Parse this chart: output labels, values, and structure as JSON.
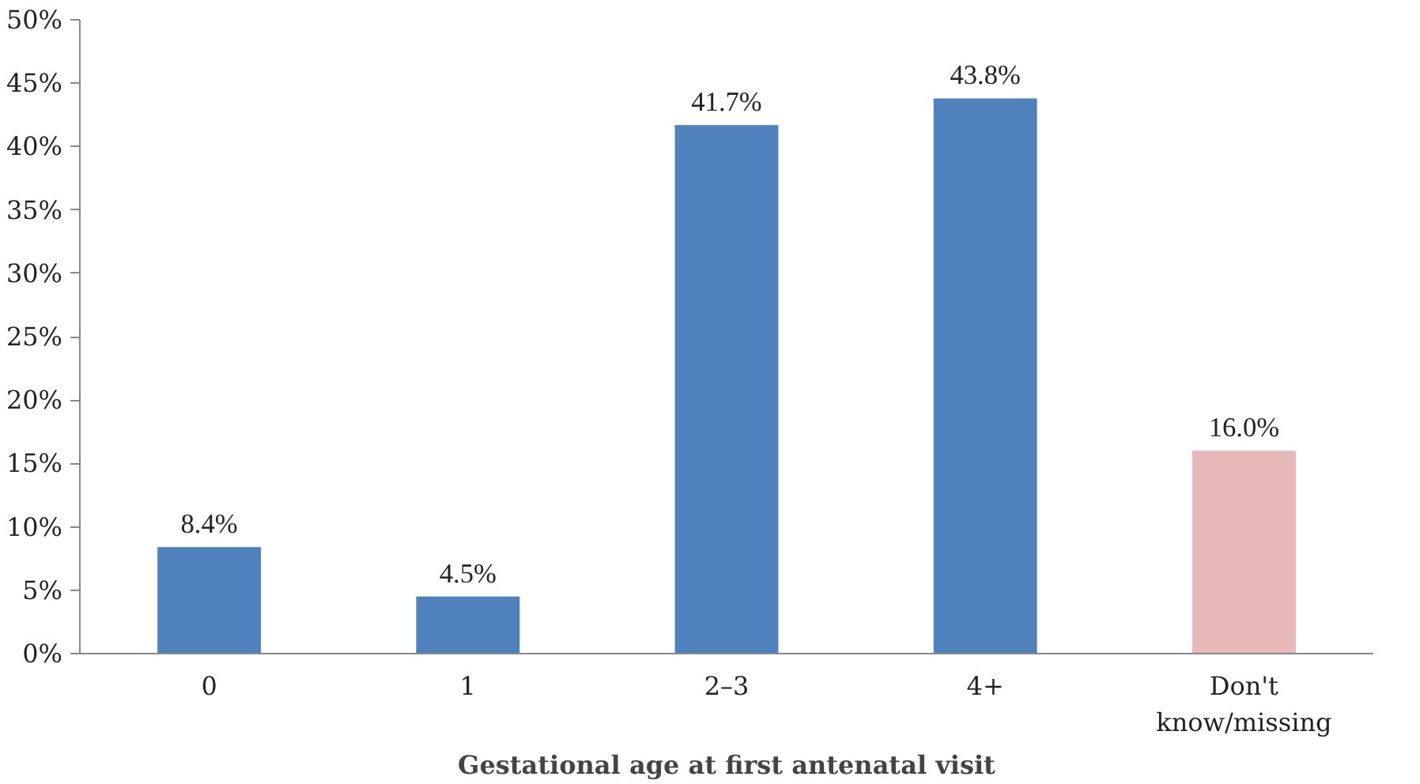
{
  "chart_data": {
    "type": "bar",
    "xlabel": "Gestational age at first antenatal visit",
    "categories": [
      "0",
      "1",
      "2–3",
      "4+",
      "Don't know/missing"
    ],
    "values": [
      8.4,
      4.5,
      41.7,
      43.8,
      16.0
    ],
    "colors": [
      "#4f81bd",
      "#4f81bd",
      "#4f81bd",
      "#4f81bd",
      "#e6b9b8"
    ],
    "value_labels": [
      "8.4%",
      "4.5%",
      "41.7%",
      "43.8%",
      "16.0%"
    ],
    "ylim": [
      0,
      50
    ],
    "yticks": [
      {
        "value": 0,
        "label": "0%"
      },
      {
        "value": 5,
        "label": "5%"
      },
      {
        "value": 10,
        "label": "10%"
      },
      {
        "value": 15,
        "label": "15%"
      },
      {
        "value": 20,
        "label": "20%"
      },
      {
        "value": 25,
        "label": "25%"
      },
      {
        "value": 30,
        "label": "30%"
      },
      {
        "value": 35,
        "label": "35%"
      },
      {
        "value": 40,
        "label": "40%"
      },
      {
        "value": 45,
        "label": "45%"
      },
      {
        "value": 50,
        "label": "50%"
      }
    ],
    "grid": false
  }
}
